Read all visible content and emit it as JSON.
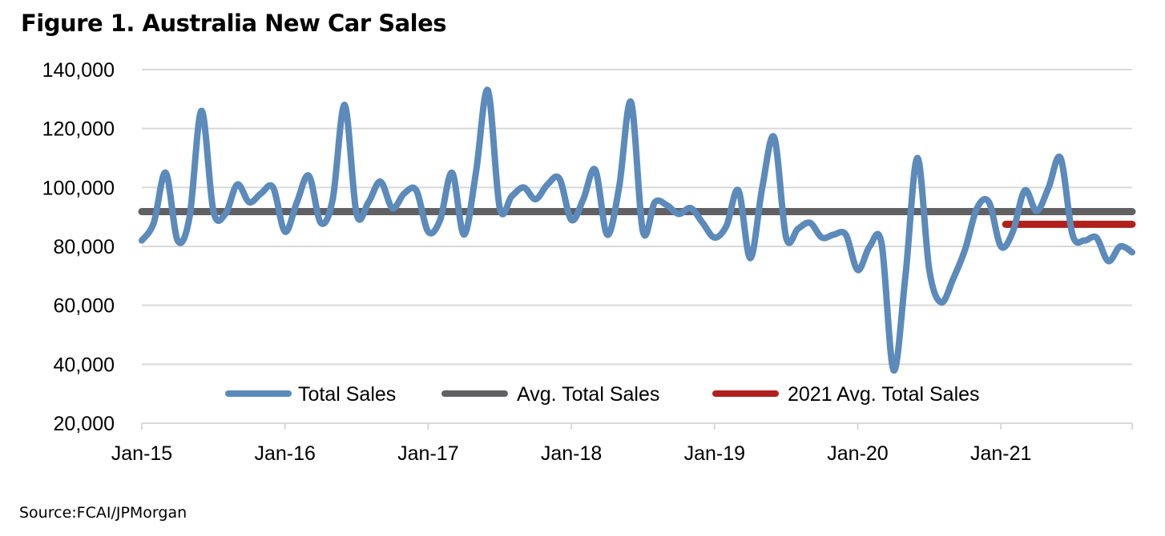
{
  "title": "Figure 1. Australia New Car Sales",
  "source": "Source:FCAI/JPMorgan",
  "chart_data": {
    "type": "line",
    "title": "Figure 1. Australia New Car Sales",
    "xlabel": "",
    "ylabel": "",
    "ylim": [
      20000,
      140000
    ],
    "yticks": [
      20000,
      40000,
      60000,
      80000,
      100000,
      120000,
      140000
    ],
    "ytick_labels": [
      "20,000",
      "40,000",
      "60,000",
      "80,000",
      "100,000",
      "120,000",
      "140,000"
    ],
    "xtick_labels": [
      "Jan-15",
      "Jan-16",
      "Jan-17",
      "Jan-18",
      "Jan-19",
      "Jan-20",
      "Jan-21"
    ],
    "x_start": "Jan-15",
    "x_end": "Dec-21",
    "grid": true,
    "legend_placement": "bottom-inside",
    "colors": {
      "total": "#5b8abb",
      "avg": "#616164",
      "avg2021": "#b0201c",
      "grid": "#d9d9d9"
    },
    "series": [
      {
        "name": "Total Sales",
        "values": [
          82000,
          88000,
          105000,
          82000,
          90000,
          126000,
          92000,
          91000,
          101000,
          95000,
          98000,
          100000,
          85000,
          95000,
          104000,
          88000,
          96000,
          128000,
          91000,
          95000,
          102000,
          93000,
          98000,
          99000,
          85000,
          89000,
          105000,
          84000,
          105000,
          133000,
          93000,
          97000,
          100000,
          96000,
          101000,
          103000,
          89000,
          96000,
          106000,
          84000,
          100000,
          129000,
          85000,
          95000,
          94000,
          91000,
          93000,
          88000,
          83000,
          87000,
          99000,
          76000,
          100000,
          117000,
          83000,
          86000,
          88000,
          83000,
          84000,
          84000,
          72000,
          80000,
          81000,
          38000,
          70000,
          110000,
          72000,
          61000,
          69000,
          79000,
          93000,
          95000,
          80000,
          85000,
          99000,
          92000,
          100000,
          110000,
          84000,
          82000,
          83000,
          75000,
          80000,
          78000
        ]
      },
      {
        "name": "Avg. Total Sales",
        "value": 91800
      },
      {
        "name": "2021 Avg. Total Sales",
        "value": 87500,
        "from": "Jan-21",
        "to": "Dec-21"
      }
    ]
  }
}
